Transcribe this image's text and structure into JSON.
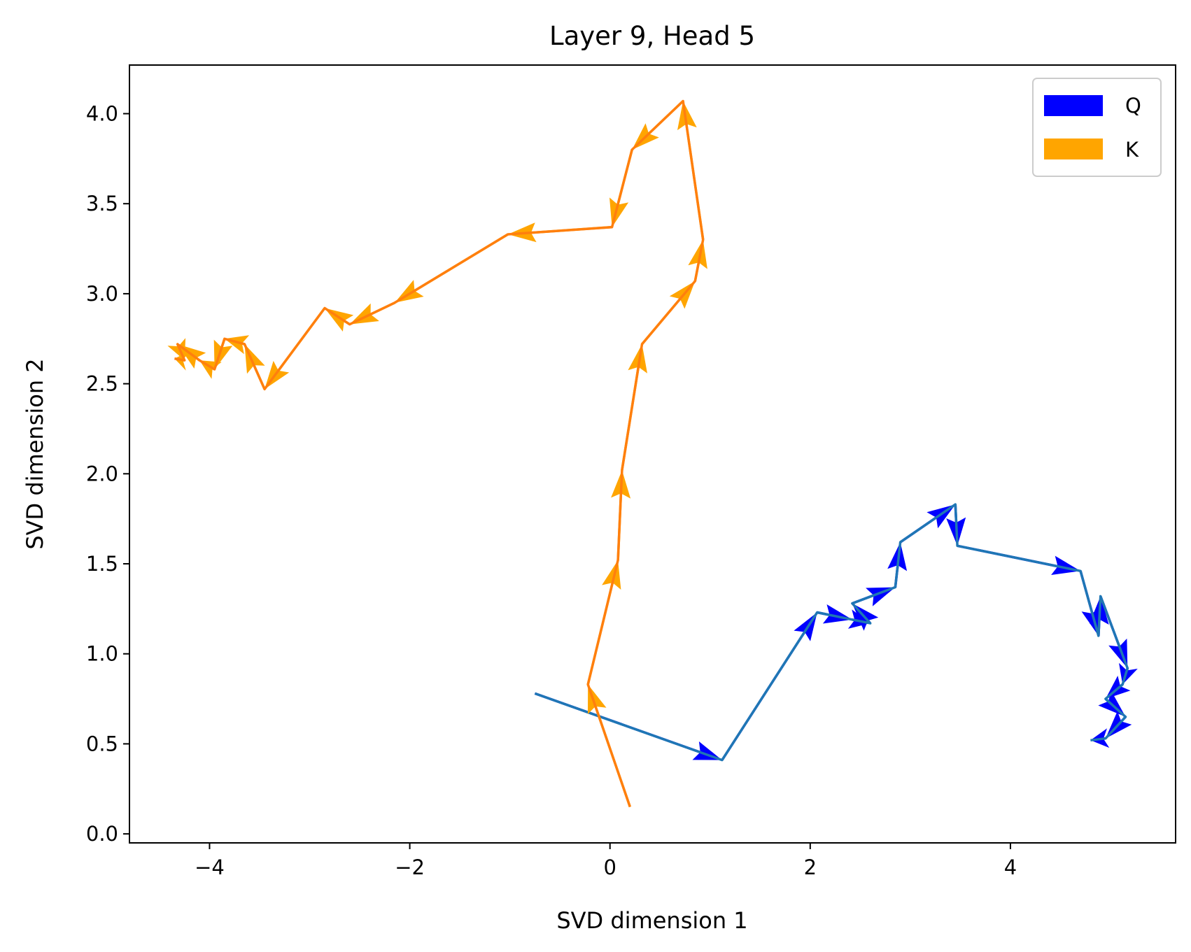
{
  "chart_data": {
    "type": "line",
    "title": "Layer 9, Head 5",
    "xlabel": "SVD dimension 1",
    "ylabel": "SVD dimension 2",
    "xlim": [
      -4.8,
      5.65
    ],
    "ylim": [
      -0.05,
      4.27
    ],
    "xticks": [
      -4,
      -2,
      0,
      2,
      4
    ],
    "xtick_labels": [
      "−4",
      "−2",
      "0",
      "2",
      "4"
    ],
    "yticks": [
      0.0,
      0.5,
      1.0,
      1.5,
      2.0,
      2.5,
      3.0,
      3.5,
      4.0
    ],
    "ytick_labels": [
      "0.0",
      "0.5",
      "1.0",
      "1.5",
      "2.0",
      "2.5",
      "3.0",
      "3.5",
      "4.0"
    ],
    "grid": false,
    "legend_position": "top-right",
    "series": [
      {
        "name": "Q",
        "color": "#0000ff",
        "line_color": "#1f77b4",
        "points": [
          [
            -0.75,
            0.78
          ],
          [
            1.12,
            0.41
          ],
          [
            2.07,
            1.23
          ],
          [
            2.42,
            1.19
          ],
          [
            2.6,
            1.17
          ],
          [
            2.42,
            1.28
          ],
          [
            2.85,
            1.37
          ],
          [
            2.9,
            1.62
          ],
          [
            3.45,
            1.83
          ],
          [
            3.47,
            1.6
          ],
          [
            4.7,
            1.46
          ],
          [
            4.88,
            1.1
          ],
          [
            4.9,
            1.32
          ],
          [
            5.17,
            0.92
          ],
          [
            5.12,
            0.83
          ],
          [
            4.95,
            0.75
          ],
          [
            5.15,
            0.65
          ],
          [
            4.95,
            0.53
          ],
          [
            4.8,
            0.52
          ]
        ]
      },
      {
        "name": "K",
        "color": "#ffa500",
        "line_color": "#ff7f0e",
        "points": [
          [
            0.2,
            0.15
          ],
          [
            -0.22,
            0.83
          ],
          [
            0.08,
            1.52
          ],
          [
            0.12,
            2.02
          ],
          [
            0.32,
            2.72
          ],
          [
            0.85,
            3.07
          ],
          [
            0.93,
            3.3
          ],
          [
            0.73,
            4.07
          ],
          [
            0.22,
            3.8
          ],
          [
            0.02,
            3.37
          ],
          [
            -1.02,
            3.33
          ],
          [
            -2.15,
            2.95
          ],
          [
            -2.6,
            2.83
          ],
          [
            -2.85,
            2.92
          ],
          [
            -3.45,
            2.47
          ],
          [
            -3.65,
            2.72
          ],
          [
            -3.85,
            2.75
          ],
          [
            -3.95,
            2.58
          ],
          [
            -4.1,
            2.63
          ],
          [
            -4.32,
            2.72
          ],
          [
            -4.25,
            2.63
          ],
          [
            -4.35,
            2.64
          ]
        ]
      }
    ]
  }
}
